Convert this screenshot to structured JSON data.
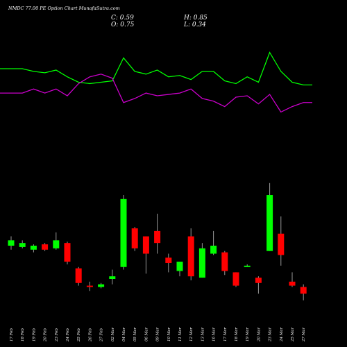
{
  "title": "NMDC 77.00  PE Option  Chart MunafaSutra.com",
  "ohlc": {
    "close_label": "C: 0.59",
    "high_label": "H: 0.85",
    "open_label": "O: 0.75",
    "low_label": "L: 0.34"
  },
  "colors": {
    "background": "#000000",
    "up": "#00ff00",
    "down": "#ff0000",
    "line_upper": "#00ff00",
    "line_lower": "#cc00cc",
    "wick": "#999999"
  },
  "chart_data": {
    "type": "candlestick",
    "title": "NMDC 77.00  PE Option  Chart MunafaSutra.com",
    "xlabel": "",
    "ylabel": "",
    "ylim": [
      0,
      1
    ],
    "grid": false,
    "categories": [
      "17 Feb",
      "18 Feb",
      "19 Feb",
      "20 Feb",
      "23 Feb",
      "24 Feb",
      "25 Feb",
      "26 Feb",
      "27 Feb",
      "02 Mar",
      "04 Mar",
      "05 Mar",
      "06 Mar",
      "09 Mar",
      "10 Mar",
      "11 Mar",
      "12 Mar",
      "13 Mar",
      "16 Mar",
      "17 Mar",
      "18 Mar",
      "19 Mar",
      "20 Mar",
      "23 Mar",
      "24 Mar",
      "25 Mar",
      "27 Mar"
    ],
    "candles": [
      {
        "open": 0.5,
        "high": 0.57,
        "low": 0.47,
        "close": 0.54
      },
      {
        "open": 0.49,
        "high": 0.54,
        "low": 0.48,
        "close": 0.52
      },
      {
        "open": 0.47,
        "high": 0.51,
        "low": 0.45,
        "close": 0.5
      },
      {
        "open": 0.51,
        "high": 0.52,
        "low": 0.46,
        "close": 0.47
      },
      {
        "open": 0.48,
        "high": 0.6,
        "low": 0.47,
        "close": 0.54
      },
      {
        "open": 0.52,
        "high": 0.53,
        "low": 0.36,
        "close": 0.38
      },
      {
        "open": 0.33,
        "high": 0.34,
        "low": 0.2,
        "close": 0.22
      },
      {
        "open": 0.2,
        "high": 0.23,
        "low": 0.16,
        "close": 0.19
      },
      {
        "open": 0.19,
        "high": 0.22,
        "low": 0.18,
        "close": 0.21
      },
      {
        "open": 0.25,
        "high": 0.32,
        "low": 0.21,
        "close": 0.27
      },
      {
        "open": 0.34,
        "high": 0.88,
        "low": 0.32,
        "close": 0.85
      },
      {
        "open": 0.63,
        "high": 0.64,
        "low": 0.46,
        "close": 0.48
      },
      {
        "open": 0.57,
        "high": 0.57,
        "low": 0.29,
        "close": 0.44
      },
      {
        "open": 0.61,
        "high": 0.74,
        "low": 0.44,
        "close": 0.52
      },
      {
        "open": 0.41,
        "high": 0.44,
        "low": 0.3,
        "close": 0.37
      },
      {
        "open": 0.31,
        "high": 0.38,
        "low": 0.27,
        "close": 0.38
      },
      {
        "open": 0.57,
        "high": 0.63,
        "low": 0.24,
        "close": 0.27
      },
      {
        "open": 0.26,
        "high": 0.52,
        "low": 0.26,
        "close": 0.48
      },
      {
        "open": 0.44,
        "high": 0.61,
        "low": 0.43,
        "close": 0.5
      },
      {
        "open": 0.45,
        "high": 0.46,
        "low": 0.28,
        "close": 0.31
      },
      {
        "open": 0.3,
        "high": 0.3,
        "low": 0.19,
        "close": 0.2
      },
      {
        "open": 0.34,
        "high": 0.36,
        "low": 0.34,
        "close": 0.35
      },
      {
        "open": 0.26,
        "high": 0.27,
        "low": 0.14,
        "close": 0.22
      },
      {
        "open": 0.46,
        "high": 0.97,
        "low": 0.46,
        "close": 0.88
      },
      {
        "open": 0.59,
        "high": 0.72,
        "low": 0.35,
        "close": 0.43
      },
      {
        "open": 0.23,
        "high": 0.3,
        "low": 0.19,
        "close": 0.2
      },
      {
        "open": 0.19,
        "high": 0.21,
        "low": 0.09,
        "close": 0.14
      }
    ],
    "series": [
      {
        "values": [
          0.8,
          0.8,
          0.78,
          0.77,
          0.79,
          0.74,
          0.7,
          0.69,
          0.7,
          0.71,
          0.88,
          0.78,
          0.76,
          0.79,
          0.74,
          0.75,
          0.72,
          0.78,
          0.78,
          0.71,
          0.69,
          0.74,
          0.7,
          0.92,
          0.78,
          0.7,
          0.68
        ]
      },
      {
        "values": [
          0.62,
          0.62,
          0.65,
          0.62,
          0.65,
          0.6,
          0.69,
          0.74,
          0.76,
          0.73,
          0.55,
          0.58,
          0.62,
          0.6,
          0.61,
          0.62,
          0.65,
          0.58,
          0.56,
          0.52,
          0.59,
          0.6,
          0.54,
          0.61,
          0.48,
          0.52,
          0.55
        ]
      }
    ]
  }
}
